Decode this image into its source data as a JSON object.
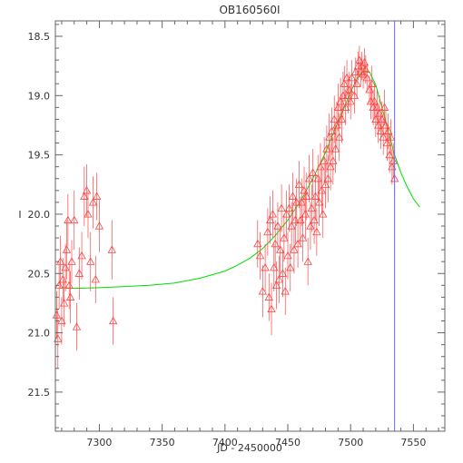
{
  "chart_data": {
    "type": "scatter",
    "title": "OB160560I",
    "xlabel": "JD - 2450000",
    "ylabel": "I",
    "xlim": [
      7265,
      7575
    ],
    "ylim": [
      21.83,
      18.37
    ],
    "y_inverted": true,
    "x_ticks": [
      7300,
      7350,
      7400,
      7450,
      7500,
      7550
    ],
    "y_ticks": [
      18.5,
      19.0,
      19.5,
      20.0,
      20.5,
      21.0,
      21.5
    ],
    "y_tick_labels": [
      "18.5",
      "19.0",
      "19.5",
      "20.0",
      "20.5",
      "21.0",
      "21.5"
    ],
    "grid": false,
    "vertical_line": {
      "x": 7535,
      "color": "#6666ff"
    },
    "colors": {
      "data": "#ff4444",
      "model": "#00dd00",
      "axis": "#666666"
    },
    "series": [
      {
        "marker": "open-triangle",
        "points": [
          [
            7266,
            20.85,
            0.2
          ],
          [
            7267,
            21.05,
            0.25
          ],
          [
            7268,
            20.6,
            0.2
          ],
          [
            7269,
            20.4,
            0.22
          ],
          [
            7270,
            20.9,
            0.2
          ],
          [
            7271,
            20.55,
            0.18
          ],
          [
            7272,
            20.75,
            0.2
          ],
          [
            7273,
            20.45,
            0.2
          ],
          [
            7274,
            20.3,
            0.25
          ],
          [
            7275,
            20.05,
            0.22
          ],
          [
            7276,
            20.6,
            0.2
          ],
          [
            7277,
            20.7,
            0.22
          ],
          [
            7278,
            20.4,
            0.18
          ],
          [
            7280,
            20.05,
            0.25
          ],
          [
            7282,
            20.95,
            0.2
          ],
          [
            7284,
            20.5,
            0.22
          ],
          [
            7286,
            20.35,
            0.2
          ],
          [
            7288,
            19.85,
            0.25
          ],
          [
            7290,
            19.8,
            0.22
          ],
          [
            7291,
            20.0,
            0.2
          ],
          [
            7293,
            20.4,
            0.25
          ],
          [
            7295,
            19.9,
            0.22
          ],
          [
            7297,
            20.55,
            0.2
          ],
          [
            7298,
            19.85,
            0.2
          ],
          [
            7300,
            20.1,
            0.22
          ],
          [
            7310,
            20.3,
            0.25
          ],
          [
            7311,
            20.9,
            0.2
          ],
          [
            7426,
            20.25,
            0.2
          ],
          [
            7428,
            20.35,
            0.2
          ],
          [
            7430,
            20.65,
            0.22
          ],
          [
            7432,
            20.45,
            0.2
          ],
          [
            7434,
            20.15,
            0.2
          ],
          [
            7435,
            20.7,
            0.2
          ],
          [
            7436,
            20.05,
            0.2
          ],
          [
            7437,
            20.8,
            0.22
          ],
          [
            7438,
            20.0,
            0.2
          ],
          [
            7439,
            20.45,
            0.2
          ],
          [
            7440,
            20.25,
            0.2
          ],
          [
            7441,
            20.6,
            0.2
          ],
          [
            7442,
            20.1,
            0.2
          ],
          [
            7443,
            20.55,
            0.2
          ],
          [
            7444,
            20.3,
            0.2
          ],
          [
            7445,
            19.95,
            0.2
          ],
          [
            7446,
            20.5,
            0.2
          ],
          [
            7447,
            20.2,
            0.2
          ],
          [
            7448,
            20.65,
            0.2
          ],
          [
            7449,
            20.0,
            0.2
          ],
          [
            7450,
            20.35,
            0.2
          ],
          [
            7451,
            19.95,
            0.2
          ],
          [
            7452,
            20.45,
            0.2
          ],
          [
            7453,
            20.1,
            0.2
          ],
          [
            7454,
            19.85,
            0.2
          ],
          [
            7455,
            20.3,
            0.2
          ],
          [
            7456,
            20.05,
            0.2
          ],
          [
            7457,
            19.9,
            0.2
          ],
          [
            7458,
            20.25,
            0.2
          ],
          [
            7459,
            19.75,
            0.2
          ],
          [
            7460,
            20.05,
            0.2
          ],
          [
            7461,
            19.9,
            0.2
          ],
          [
            7462,
            20.2,
            0.2
          ],
          [
            7463,
            19.8,
            0.2
          ],
          [
            7464,
            20.0,
            0.2
          ],
          [
            7465,
            19.85,
            0.2
          ],
          [
            7466,
            20.4,
            0.2
          ],
          [
            7467,
            19.7,
            0.2
          ],
          [
            7468,
            20.1,
            0.2
          ],
          [
            7469,
            19.95,
            0.2
          ],
          [
            7470,
            19.65,
            0.2
          ],
          [
            7471,
            20.05,
            0.2
          ],
          [
            7472,
            19.85,
            0.2
          ],
          [
            7473,
            20.15,
            0.2
          ],
          [
            7474,
            19.7,
            0.2
          ],
          [
            7475,
            19.9,
            0.2
          ],
          [
            7476,
            19.6,
            0.2
          ],
          [
            7477,
            19.8,
            0.2
          ],
          [
            7478,
            20.0,
            0.2
          ],
          [
            7479,
            19.55,
            0.2
          ],
          [
            7480,
            19.75,
            0.2
          ],
          [
            7481,
            19.45,
            0.2
          ],
          [
            7482,
            19.7,
            0.2
          ],
          [
            7483,
            19.35,
            0.2
          ],
          [
            7484,
            19.6,
            0.2
          ],
          [
            7485,
            19.3,
            0.2
          ],
          [
            7486,
            19.55,
            0.2
          ],
          [
            7487,
            19.2,
            0.2
          ],
          [
            7488,
            19.45,
            0.2
          ],
          [
            7489,
            19.25,
            0.2
          ],
          [
            7490,
            19.1,
            0.2
          ],
          [
            7491,
            19.35,
            0.2
          ],
          [
            7492,
            19.05,
            0.2
          ],
          [
            7493,
            19.2,
            0.2
          ],
          [
            7494,
            19.0,
            0.2
          ],
          [
            7495,
            18.9,
            0.15
          ],
          [
            7496,
            19.1,
            0.15
          ],
          [
            7497,
            18.85,
            0.15
          ],
          [
            7498,
            19.0,
            0.15
          ],
          [
            7499,
            18.95,
            0.15
          ],
          [
            7500,
            19.05,
            0.15
          ],
          [
            7501,
            18.85,
            0.15
          ],
          [
            7503,
            19.0,
            0.15
          ],
          [
            7504,
            18.8,
            0.12
          ],
          [
            7505,
            18.9,
            0.12
          ],
          [
            7506,
            18.75,
            0.12
          ],
          [
            7507,
            18.7,
            0.12
          ],
          [
            7508,
            18.8,
            0.12
          ],
          [
            7509,
            18.75,
            0.12
          ],
          [
            7510,
            18.82,
            0.12
          ],
          [
            7511,
            18.72,
            0.12
          ],
          [
            7512,
            18.78,
            0.12
          ],
          [
            7513,
            18.85,
            0.12
          ],
          [
            7515,
            18.95,
            0.12
          ],
          [
            7516,
            19.05,
            0.15
          ],
          [
            7517,
            18.9,
            0.15
          ],
          [
            7518,
            19.1,
            0.15
          ],
          [
            7519,
            19.05,
            0.15
          ],
          [
            7520,
            19.2,
            0.15
          ],
          [
            7521,
            19.1,
            0.15
          ],
          [
            7522,
            19.25,
            0.15
          ],
          [
            7523,
            19.15,
            0.15
          ],
          [
            7524,
            19.3,
            0.15
          ],
          [
            7525,
            19.2,
            0.15
          ],
          [
            7526,
            19.35,
            0.15
          ],
          [
            7527,
            19.1,
            0.15
          ],
          [
            7528,
            19.25,
            0.15
          ],
          [
            7529,
            19.4,
            0.15
          ],
          [
            7530,
            19.3,
            0.15
          ],
          [
            7531,
            19.5,
            0.15
          ],
          [
            7532,
            19.35,
            0.15
          ],
          [
            7533,
            19.6,
            0.15
          ],
          [
            7534,
            19.55,
            0.15
          ],
          [
            7535,
            19.7,
            0.15
          ]
        ]
      },
      {
        "line": "model",
        "points": [
          [
            7270,
            20.62
          ],
          [
            7280,
            20.625
          ],
          [
            7300,
            20.62
          ],
          [
            7320,
            20.61
          ],
          [
            7340,
            20.6
          ],
          [
            7360,
            20.58
          ],
          [
            7380,
            20.54
          ],
          [
            7400,
            20.48
          ],
          [
            7410,
            20.43
          ],
          [
            7420,
            20.37
          ],
          [
            7430,
            20.29
          ],
          [
            7440,
            20.18
          ],
          [
            7450,
            20.05
          ],
          [
            7460,
            19.89
          ],
          [
            7470,
            19.7
          ],
          [
            7480,
            19.48
          ],
          [
            7490,
            19.22
          ],
          [
            7495,
            19.1
          ],
          [
            7500,
            18.97
          ],
          [
            7505,
            18.86
          ],
          [
            7510,
            18.79
          ],
          [
            7515,
            18.8
          ],
          [
            7520,
            18.91
          ],
          [
            7525,
            19.1
          ],
          [
            7530,
            19.3
          ],
          [
            7535,
            19.5
          ],
          [
            7540,
            19.65
          ],
          [
            7545,
            19.77
          ],
          [
            7550,
            19.87
          ],
          [
            7555,
            19.94
          ]
        ]
      }
    ]
  }
}
